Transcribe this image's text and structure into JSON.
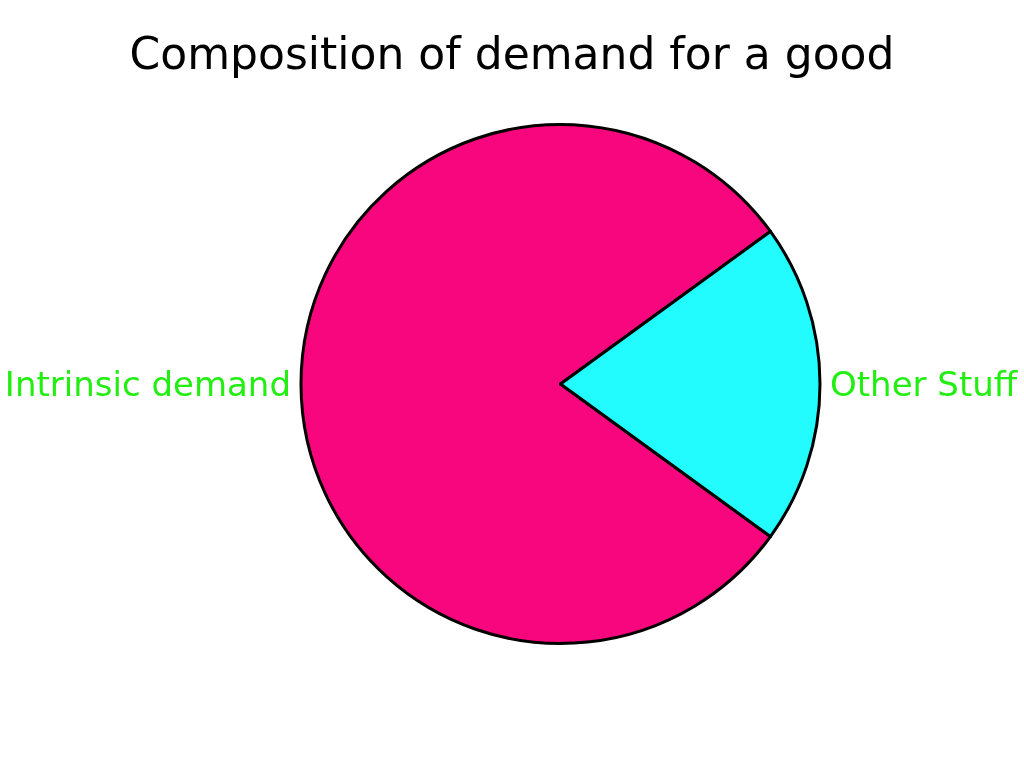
{
  "chart_data": {
    "type": "pie",
    "title": "Composition of demand for a good",
    "categories": [
      "Intrinsic demand",
      "Other Stuff"
    ],
    "values": [
      80,
      20
    ],
    "colors": [
      "#f7067e",
      "#22fcfe"
    ],
    "legend": false
  }
}
